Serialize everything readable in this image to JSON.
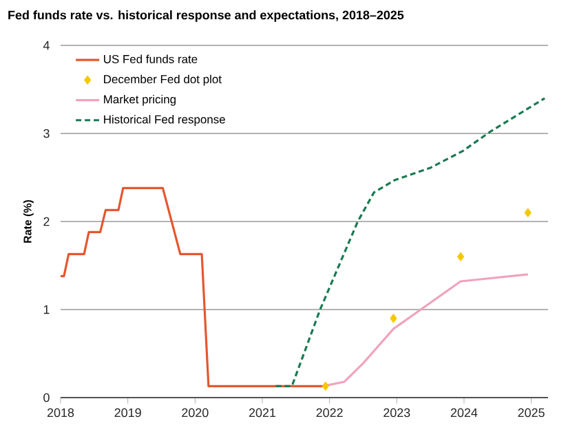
{
  "chart_data": {
    "type": "line",
    "title": "Fed funds rate vs. historical response and expectations, 2018–2025",
    "ylabel": "Rate (%)",
    "xlim": [
      2018,
      2025.25
    ],
    "ylim": [
      0,
      4
    ],
    "xticks": [
      2018,
      2019,
      2020,
      2021,
      2022,
      2023,
      2024,
      2025
    ],
    "yticks": [
      0,
      1,
      2,
      3,
      4
    ],
    "grid": "y",
    "legend": "top left",
    "series": [
      {
        "name": "US Fed funds rate",
        "color": "#e4572e",
        "line_style": "solid",
        "x": [
          2018.0,
          2018.05,
          2018.12,
          2018.35,
          2018.42,
          2018.59,
          2018.67,
          2018.86,
          2018.93,
          2019.52,
          2019.78,
          2020.1,
          2020.2,
          2021.9
        ],
        "values": [
          1.38,
          1.38,
          1.63,
          1.63,
          1.88,
          1.88,
          2.13,
          2.13,
          2.38,
          2.38,
          1.63,
          1.63,
          0.13,
          0.13
        ]
      },
      {
        "name": "December Fed dot plot",
        "type": "scatter",
        "marker": "diamond",
        "color": "#f5c800",
        "x": [
          2021.94,
          2022.95,
          2023.95,
          2024.95
        ],
        "values": [
          0.13,
          0.9,
          1.6,
          2.1
        ]
      },
      {
        "name": "Market pricing",
        "color": "#f0a3bd",
        "line_style": "solid",
        "x": [
          2021.9,
          2022.22,
          2022.5,
          2022.95,
          2023.95,
          2024.95
        ],
        "values": [
          0.13,
          0.18,
          0.39,
          0.78,
          1.32,
          1.4
        ]
      },
      {
        "name": "Historical Fed response",
        "color": "#1b7a52",
        "line_style": "dashed",
        "x": [
          2021.2,
          2021.44,
          2021.86,
          2022.42,
          2022.66,
          2022.97,
          2023.5,
          2023.98,
          2024.39,
          2025.2
        ],
        "values": [
          0.13,
          0.13,
          1.0,
          2.0,
          2.33,
          2.47,
          2.61,
          2.8,
          3.02,
          3.4
        ]
      }
    ]
  }
}
